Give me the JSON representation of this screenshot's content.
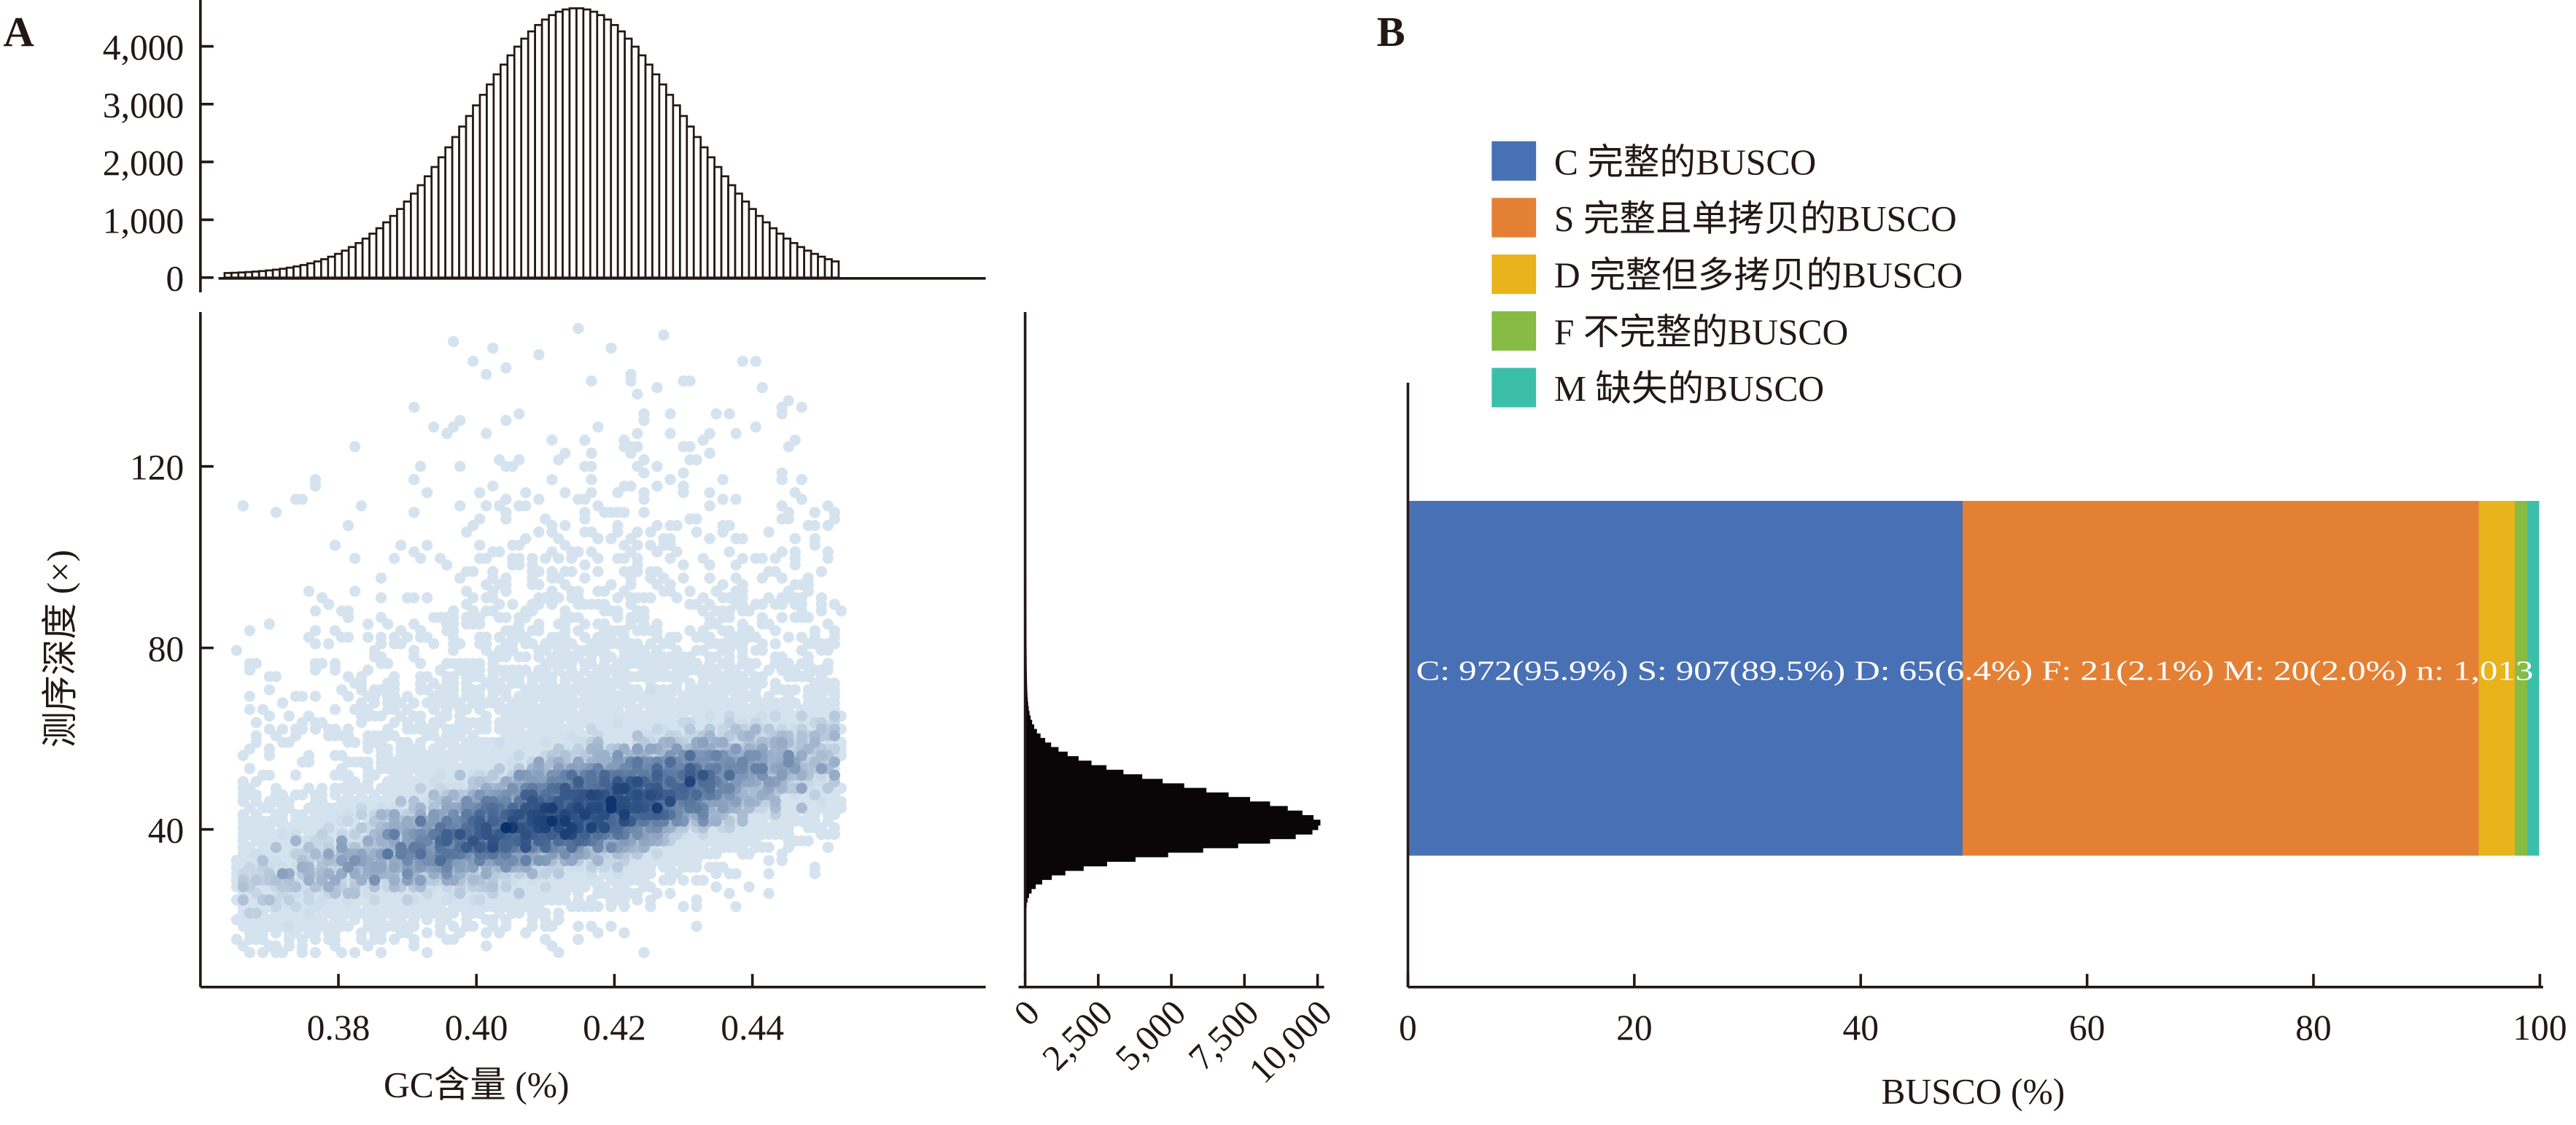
{
  "chart_data": [
    {
      "panel": "A",
      "type": "scatter",
      "subtype": "hexbin density with marginal histograms",
      "xlabel": "GC含量 (%)",
      "ylabel": "测序深度 (×)",
      "xlim": [
        0.3602,
        0.456
      ],
      "ylim": [
        5,
        155
      ],
      "xticks": [
        "0.38",
        "0.40",
        "0.42",
        "0.44"
      ],
      "xtick_values": [
        0.38,
        0.4,
        0.42,
        0.44
      ],
      "yticks": [
        "40",
        "80",
        "120"
      ],
      "ytick_values": [
        40,
        80,
        120
      ],
      "density": {
        "ridge_center_at_gc_0_403": 40,
        "ridge_slope_depth_per_gc": 340,
        "gc_range": [
          0.3655,
          0.4525
        ],
        "depth_range": [
          12,
          152
        ],
        "low_color": "#d5e3ef",
        "high_color": "#08306b"
      },
      "top_histogram": {
        "type": "bar",
        "variable": "GC",
        "bin_start": 0.3635,
        "bin_width": 0.001,
        "bin_end": 0.4525,
        "peak_count": 4600,
        "peak_at": 0.4145,
        "sd": 0.0152,
        "ylim": [
          0,
          4700
        ],
        "yticks": [
          "0",
          "1,000",
          "2,000",
          "3,000",
          "4,000"
        ],
        "ytick_values": [
          0,
          1000,
          2000,
          3000,
          4000
        ]
      },
      "right_histogram": {
        "type": "bar",
        "variable": "depth",
        "peak_count": 10000,
        "peak_at": 41,
        "sd_left": 5,
        "sd_right": 8,
        "depth_range": [
          10,
          150
        ],
        "xlim": [
          0,
          10200
        ],
        "xticks": [
          "0",
          "2,500",
          "5,000",
          "7,500",
          "10,000"
        ],
        "xtick_values": [
          0,
          2500,
          5000,
          7500,
          10000
        ]
      }
    },
    {
      "panel": "B",
      "type": "bar",
      "subtype": "horizontal stacked",
      "xlabel": "BUSCO (%)",
      "xlim": [
        0,
        100
      ],
      "xticks": [
        "0",
        "20",
        "40",
        "60",
        "80",
        "100"
      ],
      "xtick_values": [
        0,
        20,
        40,
        60,
        80,
        100
      ],
      "series": [
        {
          "key": "C",
          "name": "C 完整的BUSCO",
          "value": 49.0,
          "color": "#4870b5"
        },
        {
          "key": "S",
          "name": "S 完整且单拷贝的BUSCO",
          "value": 45.6,
          "color": "#e48034"
        },
        {
          "key": "D",
          "name": "D 完整但多拷贝的BUSCO",
          "value": 3.2,
          "color": "#e8b31b"
        },
        {
          "key": "F",
          "name": "F 不完整的BUSCO",
          "value": 1.1,
          "color": "#86bb44"
        },
        {
          "key": "M",
          "name": "M 缺失的BUSCO",
          "value": 1.0,
          "color": "#3bbfab"
        }
      ],
      "legend_position": "top-left",
      "annotation": [
        "C: 972(95.9%)",
        "S: 907(89.5%)",
        "D: 65(6.4%)",
        "F: 21(2.1%)",
        "M: 20(2.0%)",
        "n: 1,013"
      ]
    }
  ]
}
